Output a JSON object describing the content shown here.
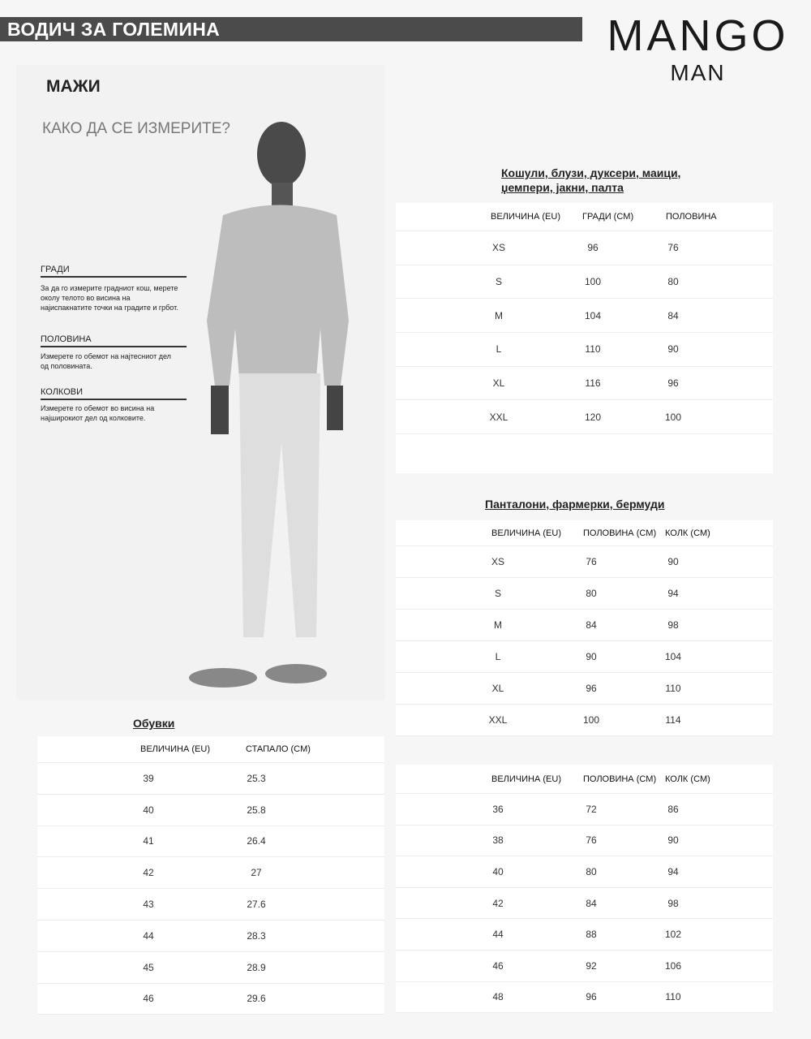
{
  "banner": {
    "title": "ВОДИЧ ЗА ГОЛЕМИНА"
  },
  "logo": {
    "brand": "MANGO",
    "line": "MAN"
  },
  "left": {
    "heading": "МАЖИ",
    "subheading": "КАКО ДА СЕ ИЗМЕРИТЕ?",
    "measures": [
      {
        "label": "ГРАДИ",
        "desc": "За да го измерите градниот кош, мерете околу телото во висина на најиспакнатите точки на градите и грбот."
      },
      {
        "label": "ПОЛОВИНА",
        "desc": "Измерете го обемот на најтесниот дел од половината."
      },
      {
        "label": "КОЛКОВИ",
        "desc": "Измерете го обемот во висина на најширокиот дел од колковите."
      }
    ]
  },
  "shirts": {
    "title1": "Кошули, блузи, дуксери, маици,",
    "title2": "џемпери, јакни, палта",
    "headers": [
      "ВЕЛИЧИНА (EU)",
      "ГРАДИ (CM)",
      "ПОЛОВИНА"
    ],
    "rows": [
      [
        "XS",
        "96",
        "76"
      ],
      [
        "S",
        "100",
        "80"
      ],
      [
        "M",
        "104",
        "84"
      ],
      [
        "L",
        "110",
        "90"
      ],
      [
        "XL",
        "116",
        "96"
      ],
      [
        "XXL",
        "120",
        "100"
      ]
    ]
  },
  "pants": {
    "title": "Панталони, фармерки, бермуди",
    "headers": [
      "ВЕЛИЧИНА (EU)",
      "ПОЛОВИНА (CM)",
      "КОЛК (CM)"
    ],
    "rows": [
      [
        "XS",
        "76",
        "90"
      ],
      [
        "S",
        "80",
        "94"
      ],
      [
        "M",
        "84",
        "98"
      ],
      [
        "L",
        "90",
        "104"
      ],
      [
        "XL",
        "96",
        "110"
      ],
      [
        "XXL",
        "100",
        "114"
      ]
    ]
  },
  "pants_num": {
    "headers": [
      "ВЕЛИЧИНА (EU)",
      "ПОЛОВИНА (CM)",
      "КОЛК (CM)"
    ],
    "rows": [
      [
        "36",
        "72",
        "86"
      ],
      [
        "38",
        "76",
        "90"
      ],
      [
        "40",
        "80",
        "94"
      ],
      [
        "42",
        "84",
        "98"
      ],
      [
        "44",
        "88",
        "102"
      ],
      [
        "46",
        "92",
        "106"
      ],
      [
        "48",
        "96",
        "110"
      ]
    ]
  },
  "shoes": {
    "title": "Обувки",
    "headers": [
      "ВЕЛИЧИНА (EU)",
      "СТАПАЛО (CM)"
    ],
    "rows": [
      [
        "39",
        "25.3"
      ],
      [
        "40",
        "25.8"
      ],
      [
        "41",
        "26.4"
      ],
      [
        "42",
        "27"
      ],
      [
        "43",
        "27.6"
      ],
      [
        "44",
        "28.3"
      ],
      [
        "45",
        "28.9"
      ],
      [
        "46",
        "29.6"
      ]
    ]
  }
}
